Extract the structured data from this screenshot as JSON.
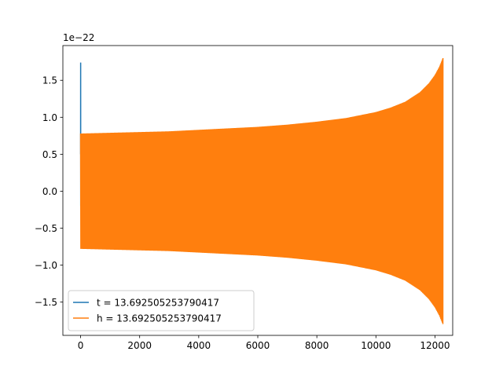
{
  "chart_data": {
    "type": "line",
    "title": "",
    "xlabel": "",
    "ylabel": "",
    "y_scale_label": "1e−22",
    "xlim": [
      -600,
      12600
    ],
    "ylim": [
      -1.95,
      1.97
    ],
    "x_ticks": [
      0,
      2000,
      4000,
      6000,
      8000,
      10000,
      12000
    ],
    "x_tick_labels": [
      "0",
      "2000",
      "4000",
      "6000",
      "8000",
      "10000",
      "12000"
    ],
    "y_ticks": [
      -1.5,
      -1.0,
      -0.5,
      0.0,
      0.5,
      1.0,
      1.5
    ],
    "y_tick_labels": [
      "−1.5",
      "−1.0",
      "−0.5",
      "0.0",
      "0.5",
      "1.0",
      "1.5"
    ],
    "grid": false,
    "legend_position": "lower-left",
    "series": [
      {
        "name": "t = 13.692505253790417",
        "color": "#1f77b4",
        "note_points": [
          [
            0,
            0.5
          ],
          [
            2,
            1.74
          ],
          [
            4,
            -0.2
          ],
          [
            6,
            0.3
          ],
          [
            10,
            0.77
          ]
        ]
      },
      {
        "name": "h = 13.692505253790417",
        "color": "#ff7f0e",
        "x_start": 0,
        "x_end": 12270,
        "envelope": [
          [
            0,
            0.78
          ],
          [
            1000,
            0.79
          ],
          [
            2000,
            0.8
          ],
          [
            3000,
            0.81
          ],
          [
            4000,
            0.83
          ],
          [
            5000,
            0.85
          ],
          [
            6000,
            0.87
          ],
          [
            7000,
            0.9
          ],
          [
            8000,
            0.94
          ],
          [
            9000,
            0.99
          ],
          [
            10000,
            1.07
          ],
          [
            10500,
            1.13
          ],
          [
            11000,
            1.21
          ],
          [
            11500,
            1.34
          ],
          [
            11800,
            1.46
          ],
          [
            12000,
            1.57
          ],
          [
            12150,
            1.68
          ],
          [
            12270,
            1.8
          ]
        ]
      }
    ]
  }
}
